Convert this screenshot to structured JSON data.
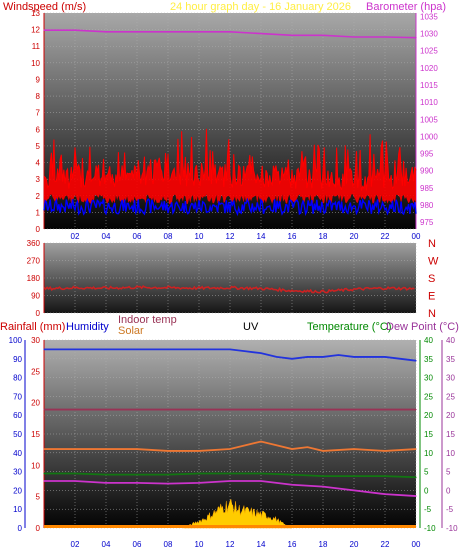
{
  "header": {
    "left_label": "Windspeed (m/s)",
    "center_label": "24 hour graph day - 16 January 2026",
    "right_label": "Barometer (hpa)"
  },
  "bottom_labels": {
    "rainfall": "Rainfall (mm)",
    "humidity": "Humidity",
    "indoor": "Indoor temp",
    "solar": "Solar",
    "uv": "UV",
    "temperature": "Temperature (°C)",
    "dewpoint": "Dew Point (°C)"
  },
  "colors": {
    "wind": "#ff0000",
    "gust": "#ff0000",
    "avg_wind": "#0000ff",
    "barometer": "#cc33cc",
    "direction": "#cc2222",
    "humidity": "#2233dd",
    "indoor": "#993355",
    "outdoor_temp": "#ee7733",
    "dewpoint": "#cc33cc",
    "green_line": "#117711",
    "solar": "#ffcc00",
    "uv": "#ff8800",
    "axis_red": "#cc0000",
    "axis_blue": "#0000cc",
    "axis_green": "#008800",
    "axis_purple": "#993399",
    "grid": "#b0b0b0"
  },
  "chart_data": [
    {
      "type": "line",
      "title": "24 hour graph day - 16 January 2026",
      "x_ticks": [
        "02",
        "04",
        "06",
        "08",
        "10",
        "12",
        "14",
        "16",
        "18",
        "20",
        "22",
        "00"
      ],
      "left_axis": {
        "label": "Windspeed (m/s)",
        "ticks": [
          0,
          1,
          2,
          3,
          4,
          5,
          6,
          7,
          8,
          9,
          10,
          11,
          12,
          13
        ],
        "ylim": [
          0,
          13
        ]
      },
      "right_axis": {
        "label": "Barometer (hpa)",
        "ticks": [
          975,
          980,
          985,
          990,
          995,
          1000,
          1005,
          1010,
          1015,
          1020,
          1025,
          1030,
          1035
        ],
        "ylim": [
          973,
          1036
        ]
      },
      "series": [
        {
          "name": "Barometer (hpa)",
          "axis": "right",
          "x": [
            0,
            2,
            4,
            6,
            8,
            10,
            12,
            14,
            16,
            18,
            20,
            22,
            24
          ],
          "values": [
            1031,
            1031,
            1030.5,
            1030.5,
            1030.5,
            1030.5,
            1030.5,
            1030,
            1029.5,
            1029.5,
            1029,
            1029,
            1028.8
          ]
        },
        {
          "name": "Windspeed (m/s)",
          "axis": "left",
          "x": [
            0,
            2,
            4,
            6,
            8,
            10,
            12,
            14,
            16,
            18,
            20,
            22,
            24
          ],
          "values": [
            2.4,
            2.4,
            2.5,
            2.5,
            2.5,
            2.6,
            2.5,
            2.5,
            2.4,
            2.4,
            2.3,
            2.3,
            2.4
          ],
          "gust_max": [
            5.5,
            5.2,
            5.0,
            4.9,
            5.3,
            6.7,
            5.6,
            5.3,
            5.2,
            5.5,
            6.7,
            5.5,
            5.0
          ]
        }
      ]
    },
    {
      "type": "line",
      "x_ticks": [
        "02",
        "04",
        "06",
        "08",
        "10",
        "12",
        "14",
        "16",
        "18",
        "20",
        "22",
        "00"
      ],
      "left_axis": {
        "ticks": [
          0,
          90,
          180,
          270,
          360
        ],
        "ylim": [
          0,
          360
        ]
      },
      "right_axis": {
        "ticks": [
          "N",
          "W",
          "S",
          "E",
          "N"
        ]
      },
      "series": [
        {
          "name": "Wind direction",
          "x": [
            0,
            2,
            4,
            6,
            8,
            10,
            12,
            14,
            16,
            18,
            20,
            22,
            24
          ],
          "values": [
            125,
            130,
            128,
            132,
            130,
            128,
            130,
            126,
            115,
            110,
            122,
            128,
            125
          ]
        }
      ]
    },
    {
      "type": "line",
      "x_ticks": [
        "02",
        "04",
        "06",
        "08",
        "10",
        "12",
        "14",
        "16",
        "18",
        "20",
        "22",
        "00"
      ],
      "axes": {
        "humidity": {
          "ticks": [
            0,
            10,
            20,
            30,
            40,
            50,
            60,
            70,
            80,
            90,
            100
          ],
          "ylim": [
            0,
            100
          ]
        },
        "rainfall": {
          "ticks": [
            0,
            5,
            10,
            15,
            20,
            25,
            30
          ],
          "ylim": [
            0,
            30
          ]
        },
        "temperature": {
          "ticks": [
            -10,
            -5,
            0,
            5,
            10,
            15,
            20,
            25,
            30,
            35,
            40
          ],
          "ylim": [
            -10,
            40
          ]
        },
        "dewpoint": {
          "ticks": [
            -10,
            -5,
            0,
            5,
            10,
            15,
            20,
            25,
            30,
            35,
            40
          ],
          "ylim": [
            -10,
            40
          ]
        }
      },
      "series": [
        {
          "name": "Humidity",
          "axis": "humidity",
          "x": [
            0,
            2,
            4,
            6,
            8,
            10,
            11,
            12,
            13,
            14,
            15,
            16,
            17,
            18,
            19,
            20,
            21,
            22,
            23,
            24
          ],
          "values": [
            95,
            95,
            95,
            95,
            95,
            95,
            95,
            95,
            94,
            93,
            91,
            90,
            91,
            91,
            92,
            91,
            91,
            91,
            90,
            89
          ]
        },
        {
          "name": "Indoor temp",
          "axis": "temperature",
          "x": [
            0,
            24
          ],
          "values": [
            21.5,
            21.5
          ]
        },
        {
          "name": "Temperature (°C)",
          "axis": "temperature",
          "x": [
            0,
            2,
            4,
            6,
            8,
            10,
            12,
            13,
            14,
            15,
            16,
            17,
            18,
            20,
            22,
            24
          ],
          "values": [
            11,
            11,
            11,
            11,
            10.5,
            10.5,
            11,
            12,
            13,
            12,
            11,
            11.5,
            10.5,
            11,
            10.5,
            11
          ]
        },
        {
          "name": "Dew Point (°C)",
          "axis": "temperature",
          "x": [
            0,
            2,
            4,
            6,
            8,
            10,
            12,
            14,
            16,
            18,
            20,
            22,
            24
          ],
          "values": [
            2.5,
            2.5,
            2,
            2,
            1.8,
            2,
            2.5,
            2.5,
            1.5,
            1,
            0,
            -1,
            -1.5
          ]
        },
        {
          "name": "Green",
          "axis": "temperature",
          "x": [
            0,
            2,
            4,
            6,
            8,
            10,
            12,
            14,
            16,
            18,
            20,
            22,
            24
          ],
          "values": [
            4.5,
            4.5,
            4.2,
            4.2,
            4.2,
            4.5,
            4.5,
            4.5,
            4.2,
            3.8,
            3.8,
            3.8,
            3.5
          ]
        },
        {
          "name": "Solar",
          "axis": "humidity",
          "x": [
            9,
            9.5,
            10,
            10.5,
            11,
            11.5,
            12,
            12.5,
            13,
            13.5,
            14,
            14.5,
            15,
            15.5,
            16
          ],
          "values": [
            0,
            2,
            4,
            6,
            9,
            12,
            14,
            11,
            10,
            9,
            8,
            7,
            5,
            2,
            0
          ]
        }
      ]
    }
  ]
}
